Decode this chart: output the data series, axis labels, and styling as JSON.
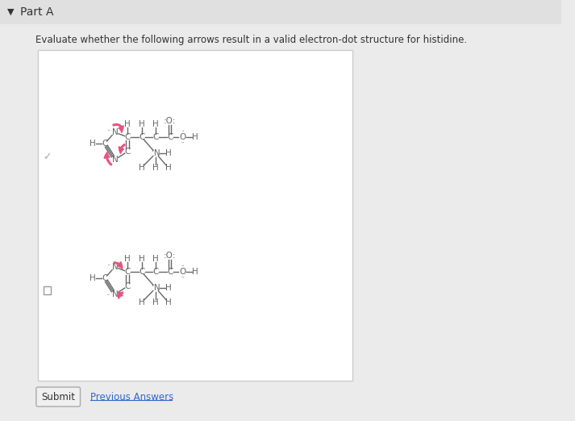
{
  "title": "Part A",
  "question": "Evaluate whether the following arrows result in a valid electron-dot structure for histidine.",
  "bg_color": "#ebebeb",
  "page_bg": "#ffffff",
  "box_bg": "#ffffff",
  "text_color": "#333333",
  "arrow_color": "#e75480",
  "structure_color": "#666666",
  "submit_label": "Submit",
  "prev_label": "Previous Answers"
}
